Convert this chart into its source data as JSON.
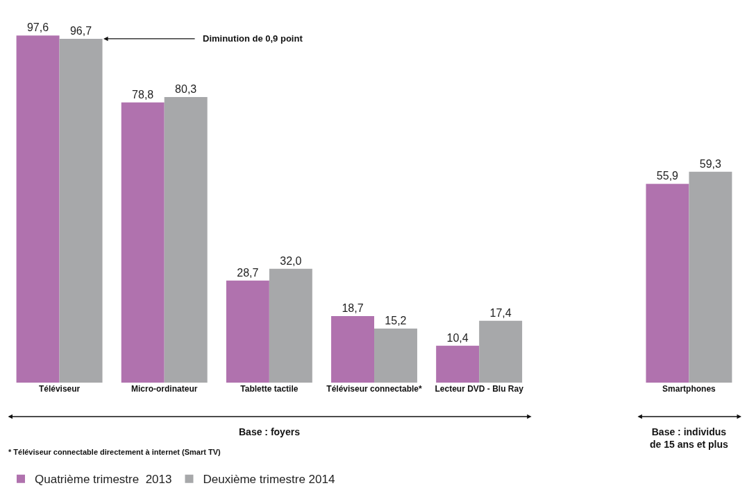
{
  "chart_data": {
    "type": "bar",
    "categories": [
      "Téléviseur",
      "Micro-ordinateur",
      "Tablette tactile",
      "Téléviseur connectable*",
      "Lecteur DVD - Blu Ray",
      null,
      "Smartphones"
    ],
    "series": [
      {
        "name": "Quatrième trimestre  2013",
        "color": "#b072ae",
        "values": [
          97.6,
          78.8,
          28.7,
          18.7,
          10.4,
          null,
          55.9
        ],
        "value_labels": [
          "97,6",
          "78,8",
          "28,7",
          "18,7",
          "10,4",
          null,
          "55,9"
        ]
      },
      {
        "name": "Deuxième trimestre 2014",
        "color": "#a7a8aa",
        "values": [
          96.7,
          80.3,
          32.0,
          15.2,
          17.4,
          null,
          59.3
        ],
        "value_labels": [
          "96,7",
          "80,3",
          "32,0",
          "15,2",
          "17,4",
          null,
          "59,3"
        ]
      }
    ],
    "annotations": [
      "Diminution de 0,9 point",
      "Base : foyers",
      "Base : individus\nde 15 ans et plus",
      "* Téléviseur connectable directement à internet (Smart TV)"
    ],
    "legend": "bottom left",
    "grid": false
  }
}
